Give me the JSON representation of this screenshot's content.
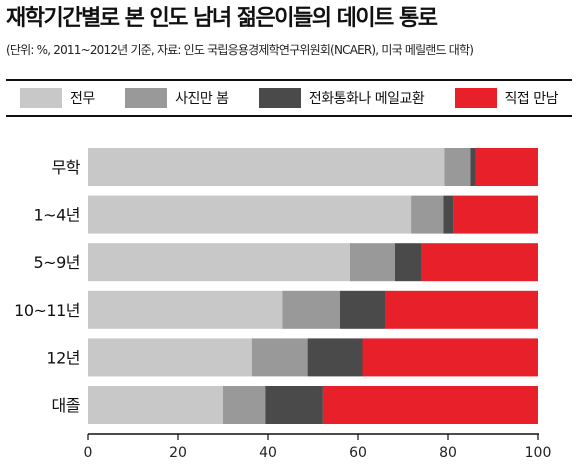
{
  "title": "재학기간별로 본 인도 남녀 젊은이들의 데이트 통로",
  "subtitle": "(단위: %, 2011~2012년 기준, 자료: 인도 국립응용경제학연구위원회(NCAER), 미국 메릴랜드 대학)",
  "colors": {
    "전무": "#c8c8c8",
    "사진만 봄": "#999999",
    "전화통화나 메일교환": "#4a4a4a",
    "직접 만남": "#e8202a"
  },
  "chart_data": {
    "type": "bar",
    "orientation": "horizontal",
    "stacked": true,
    "title": "재학기간별로 본 인도 남녀 젊은이들의 데이트 통로",
    "subtitle": "(단위: %, 2011~2012년 기준, 자료: 인도 국립응용경제학연구위원회(NCAER), 미국 메릴랜드 대학)",
    "categories": [
      "무학",
      "1~4년",
      "5~9년",
      "10~11년",
      "12년",
      "대졸"
    ],
    "series": [
      {
        "name": "전무",
        "values": [
          79.2,
          71.8,
          58.2,
          43.2,
          36.4,
          30.0
        ]
      },
      {
        "name": "사진만 봄",
        "values": [
          5.8,
          7.2,
          10.0,
          12.8,
          12.4,
          9.4
        ]
      },
      {
        "name": "전화통화나 메일교환",
        "values": [
          1.2,
          2.2,
          5.8,
          10.0,
          12.2,
          12.8
        ]
      },
      {
        "name": "직접 만남",
        "values": [
          13.8,
          18.8,
          26.0,
          34.0,
          39.0,
          47.8
        ]
      }
    ],
    "xlim": [
      0,
      100
    ],
    "xticks": [
      0,
      20,
      40,
      60,
      80,
      100
    ],
    "xlabel": "",
    "ylabel": "",
    "legend_position": "top",
    "grid": false
  }
}
